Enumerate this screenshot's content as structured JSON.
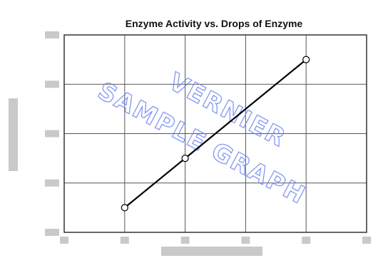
{
  "chart_data": {
    "type": "line",
    "title": "Enzyme Activity vs. Drops of Enzyme",
    "watermark": [
      "VERNIER",
      "SAMPLE GRAPH"
    ],
    "xlim": [
      0,
      5
    ],
    "ylim": [
      0,
      4
    ],
    "grid": true,
    "x": [
      1,
      2,
      4
    ],
    "series": [
      {
        "values": [
          0.5,
          1.5,
          3.5
        ],
        "color": "#000000"
      }
    ],
    "colors": {
      "line": "#000000",
      "grid": "#555555",
      "watermark": "#6f86f0"
    }
  }
}
